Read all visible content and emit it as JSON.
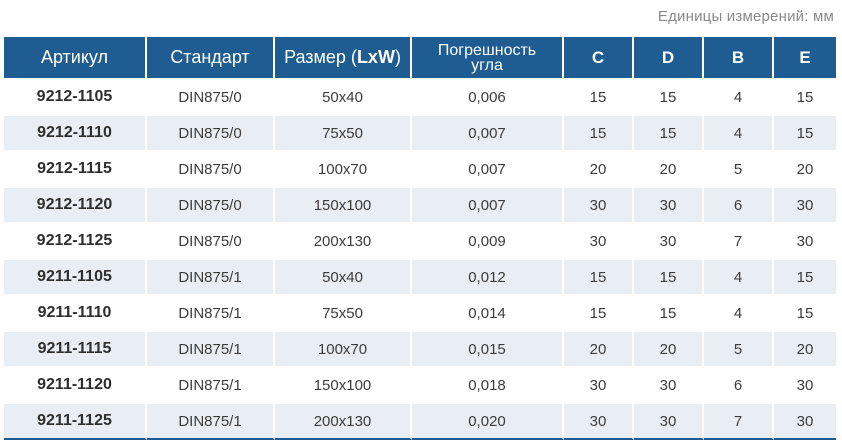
{
  "units_note": "Единицы измерений: мм",
  "headers": {
    "article": "Артикул",
    "standard": "Стандарт",
    "size_prefix": "Размер (",
    "size_bold": "LxW",
    "size_suffix": ")",
    "tolerance_line1": "Погрешность",
    "tolerance_line2": "угла",
    "c": "C",
    "d": "D",
    "b": "B",
    "e": "E"
  },
  "rows": [
    {
      "article": "9212-1105",
      "standard": "DIN875/0",
      "size": "50x40",
      "tolerance": "0,006",
      "c": "15",
      "d": "15",
      "b": "4",
      "e": "15"
    },
    {
      "article": "9212-1110",
      "standard": "DIN875/0",
      "size": "75x50",
      "tolerance": "0,007",
      "c": "15",
      "d": "15",
      "b": "4",
      "e": "15"
    },
    {
      "article": "9212-1115",
      "standard": "DIN875/0",
      "size": "100x70",
      "tolerance": "0,007",
      "c": "20",
      "d": "20",
      "b": "5",
      "e": "20"
    },
    {
      "article": "9212-1120",
      "standard": "DIN875/0",
      "size": "150x100",
      "tolerance": "0,007",
      "c": "30",
      "d": "30",
      "b": "6",
      "e": "30"
    },
    {
      "article": "9212-1125",
      "standard": "DIN875/0",
      "size": "200x130",
      "tolerance": "0,009",
      "c": "30",
      "d": "30",
      "b": "7",
      "e": "30"
    },
    {
      "article": "9211-1105",
      "standard": "DIN875/1",
      "size": "50x40",
      "tolerance": "0,012",
      "c": "15",
      "d": "15",
      "b": "4",
      "e": "15"
    },
    {
      "article": "9211-1110",
      "standard": "DIN875/1",
      "size": "75x50",
      "tolerance": "0,014",
      "c": "15",
      "d": "15",
      "b": "4",
      "e": "15"
    },
    {
      "article": "9211-1115",
      "standard": "DIN875/1",
      "size": "100x70",
      "tolerance": "0,015",
      "c": "20",
      "d": "20",
      "b": "5",
      "e": "20"
    },
    {
      "article": "9211-1120",
      "standard": "DIN875/1",
      "size": "150x100",
      "tolerance": "0,018",
      "c": "30",
      "d": "30",
      "b": "6",
      "e": "30"
    },
    {
      "article": "9211-1125",
      "standard": "DIN875/1",
      "size": "200x130",
      "tolerance": "0,020",
      "c": "30",
      "d": "30",
      "b": "7",
      "e": "30"
    }
  ],
  "colors": {
    "header_bg": "#1f5c92",
    "stripe_bg": "#e9eef4",
    "units_text": "#8a8a8a"
  }
}
